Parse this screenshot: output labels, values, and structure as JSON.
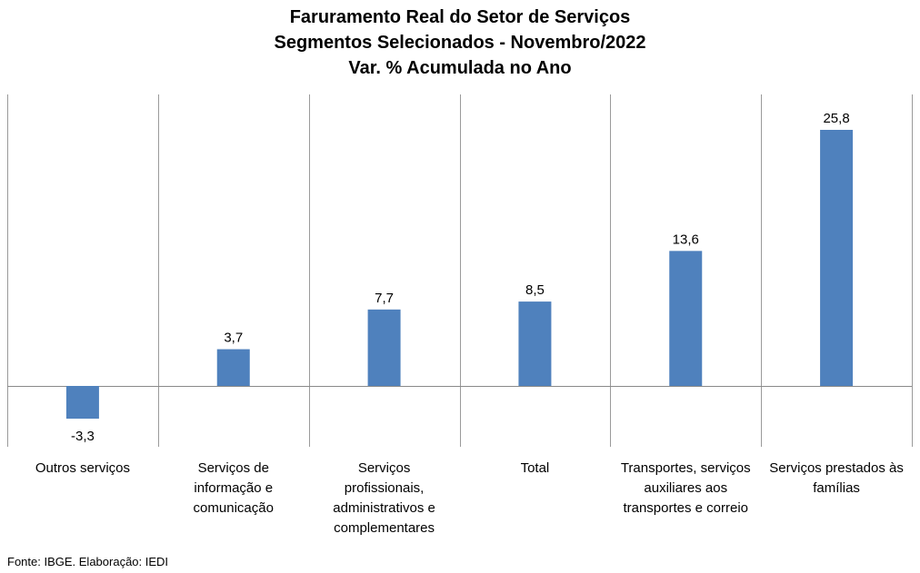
{
  "chart_data": {
    "type": "bar",
    "title": [
      "Faruramento Real do Setor de Serviços",
      "Segmentos Selecionados - Novembro/2022",
      "Var. % Acumulada no Ano"
    ],
    "categories": [
      [
        "Outros serviços"
      ],
      [
        "Serviços de",
        "informação e",
        "comunicação"
      ],
      [
        "Serviços",
        "profissionais,",
        "administrativos e",
        "complementares"
      ],
      [
        "Total"
      ],
      [
        "Transportes, serviços",
        "auxiliares aos",
        "transportes e correio"
      ],
      [
        "Serviços prestados às",
        "famílias"
      ]
    ],
    "values": [
      -3.3,
      3.7,
      7.7,
      8.5,
      13.6,
      25.8
    ],
    "value_labels": [
      "-3,3",
      "3,7",
      "7,7",
      "8,5",
      "13,6",
      "25,8"
    ],
    "ylim": [
      -6,
      28.5
    ],
    "bar_color": "#4f81bd",
    "grid": false,
    "category_separators": true
  },
  "source": "Fonte: IBGE. Elaboração: IEDI"
}
